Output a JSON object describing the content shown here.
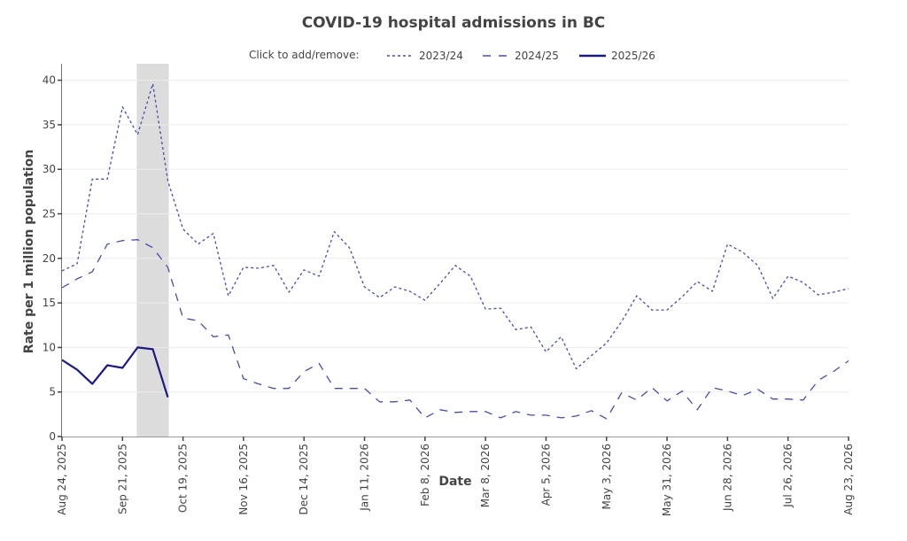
{
  "chart_data": {
    "type": "line",
    "title": "COVID-19 hospital admissions in BC",
    "xlabel": "Date",
    "ylabel": "Rate per 1 million population",
    "ylim": [
      0,
      41.5
    ],
    "yticks": [
      0,
      5,
      10,
      15,
      20,
      25,
      30,
      35,
      40
    ],
    "grid": true,
    "legend_position": "top",
    "legend_prefix": "Click to add/remove:",
    "x_start": "Aug 24, 2025",
    "x_interval": "weekly",
    "num_weeks": 53,
    "xtick_labels": [
      "Aug 24, 2025",
      "Sep 21, 2025",
      "Oct 19, 2025",
      "Nov 16, 2025",
      "Dec 14, 2025",
      "Jan 11, 2026",
      "Feb 8, 2026",
      "Mar 8, 2026",
      "Apr 5, 2026",
      "May 3, 2026",
      "May 31, 2026",
      "Jun 28, 2026",
      "Jul 26, 2026",
      "Aug 23, 2026"
    ],
    "xtick_week_index": [
      0,
      4,
      8,
      12,
      16,
      20,
      24,
      28,
      32,
      36,
      40,
      44,
      48,
      52
    ],
    "highlight_band": {
      "from_week": 5,
      "to_week": 7,
      "color": "#dcdcdc"
    },
    "series": [
      {
        "name": "2023/24",
        "style": "dotted",
        "color": "#4b4ba8",
        "values": [
          18.6,
          19.4,
          28.9,
          28.9,
          37.0,
          33.9,
          39.6,
          28.7,
          23.3,
          21.6,
          22.8,
          15.8,
          19.0,
          18.9,
          19.2,
          16.2,
          18.7,
          18.0,
          23.0,
          21.2,
          16.8,
          15.6,
          16.8,
          16.3,
          15.3,
          17.2,
          19.2,
          18.0,
          14.3,
          14.4,
          12.0,
          12.3,
          9.5,
          11.2,
          7.6,
          9.1,
          10.5,
          12.9,
          15.8,
          14.2,
          14.2,
          15.7,
          17.4,
          16.3,
          21.6,
          20.7,
          19.2,
          15.5,
          18.0,
          17.3,
          15.9,
          16.2,
          16.6
        ]
      },
      {
        "name": "2024/25",
        "style": "dashed",
        "color": "#4b4ba8",
        "values": [
          16.7,
          17.7,
          18.5,
          21.6,
          22.0,
          22.1,
          21.2,
          19.0,
          13.3,
          13.0,
          11.2,
          11.4,
          6.5,
          5.9,
          5.4,
          5.4,
          7.3,
          8.2,
          5.4,
          5.4,
          5.4,
          3.9,
          3.9,
          4.1,
          2.1,
          3.0,
          2.7,
          2.8,
          2.8,
          2.1,
          2.8,
          2.4,
          2.4,
          2.1,
          2.3,
          2.9,
          2.0,
          4.9,
          4.1,
          5.5,
          4.0,
          5.1,
          3.0,
          5.5,
          5.1,
          4.6,
          5.3,
          4.2,
          4.2,
          4.1,
          6.3,
          7.3,
          8.5
        ]
      },
      {
        "name": "2025/26",
        "style": "solid",
        "color": "#1a1a80",
        "values": [
          8.6,
          7.5,
          5.9,
          8.0,
          7.7,
          10.0,
          9.8,
          4.4
        ]
      }
    ]
  }
}
